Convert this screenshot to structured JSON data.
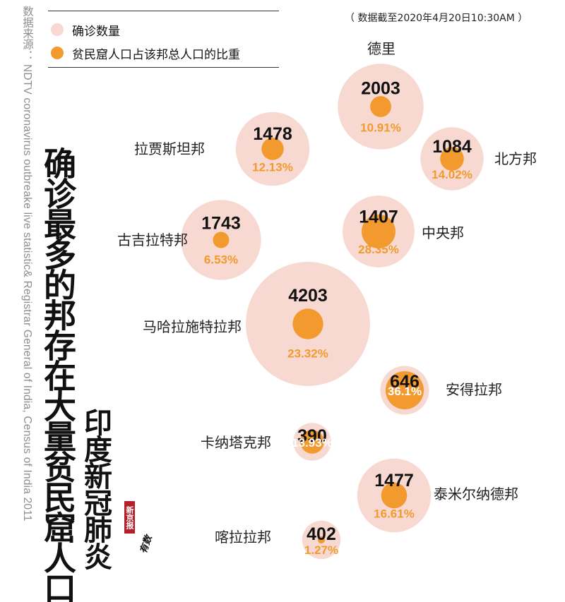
{
  "source_text": "数据来源： NDTV coronavirus outbreake live statistic& Registrar General of India, Census of India 2011",
  "title_main": "确诊最多的邦存在大量贫民窟人口",
  "title_sub": "印度新冠肺炎",
  "date_note": "（ 数据截至2020年4月20日10:30AM ）",
  "legend": {
    "cases_label": "确诊数量",
    "slum_label": "贫民窟人口占该邦总人口的比重"
  },
  "brand": {
    "red_text": "新京报",
    "black_text": "有数"
  },
  "colors": {
    "cases_fill": "#f7d9d2",
    "slum_fill": "#f39a2e",
    "percent_text": "#f39a2e",
    "count_text": "#111111",
    "background": "#ffffff"
  },
  "chart_data": {
    "type": "bubble",
    "series": [
      {
        "name": "确诊数量"
      },
      {
        "name": "贫民窟人口占该邦总人口的比重"
      }
    ],
    "points": [
      {
        "state": "德里",
        "cases": 2003,
        "slum_pct": 10.91,
        "slum_label": "10.91%"
      },
      {
        "state": "拉贾斯坦邦",
        "cases": 1478,
        "slum_pct": 12.13,
        "slum_label": "12.13%"
      },
      {
        "state": "北方邦",
        "cases": 1084,
        "slum_pct": 14.02,
        "slum_label": "14.02%"
      },
      {
        "state": "古吉拉特邦",
        "cases": 1743,
        "slum_pct": 6.53,
        "slum_label": "6.53%"
      },
      {
        "state": "中央邦",
        "cases": 1407,
        "slum_pct": 28.35,
        "slum_label": "28.35%"
      },
      {
        "state": "马哈拉施特拉邦",
        "cases": 4203,
        "slum_pct": 23.32,
        "slum_label": "23.32%"
      },
      {
        "state": "安得拉邦",
        "cases": 646,
        "slum_pct": 36.1,
        "slum_label": "36.1%"
      },
      {
        "state": "卡纳塔克邦",
        "cases": 390,
        "slum_pct": 13.93,
        "slum_label": "13.93%"
      },
      {
        "state": "泰米尔纳德邦",
        "cases": 1477,
        "slum_pct": 16.61,
        "slum_label": "16.61%"
      },
      {
        "state": "喀拉拉邦",
        "cases": 402,
        "slum_pct": 1.27,
        "slum_label": "1.27%"
      }
    ]
  }
}
